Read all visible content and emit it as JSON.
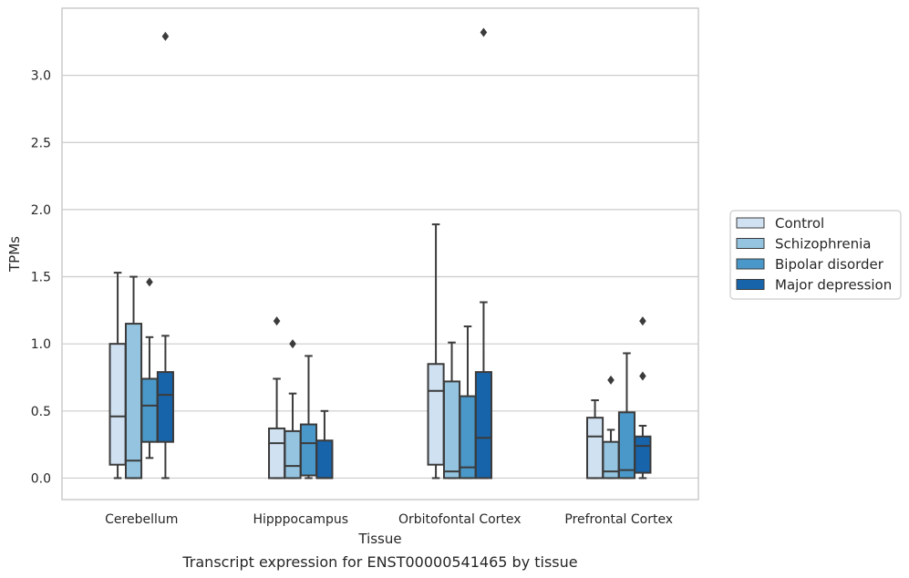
{
  "caption": "Transcript expression for ENST00000541465 by tissue",
  "chart_data": {
    "type": "box",
    "title": "",
    "xlabel": "Tissue",
    "ylabel": "TPMs",
    "ylim": [
      -0.16,
      3.5
    ],
    "yticks": [
      0.0,
      0.5,
      1.0,
      1.5,
      2.0,
      2.5,
      3.0
    ],
    "ytick_labels": [
      "0.0",
      "0.5",
      "1.0",
      "1.5",
      "2.0",
      "2.5",
      "3.0"
    ],
    "grid": "horizontal",
    "legend_position": "right",
    "categories": [
      "Cerebellum",
      "Hipppocampus",
      "Orbitofontal Cortex",
      "Prefrontal Cortex"
    ],
    "series": [
      {
        "name": "Control",
        "color": "#d0e1f2",
        "boxes": [
          {
            "whislo": 0.0,
            "q1": 0.1,
            "med": 0.46,
            "q3": 1.0,
            "whishi": 1.53,
            "fliers": []
          },
          {
            "whislo": 0.0,
            "q1": 0.0,
            "med": 0.26,
            "q3": 0.37,
            "whishi": 0.74,
            "fliers": [
              1.17
            ]
          },
          {
            "whislo": 0.0,
            "q1": 0.1,
            "med": 0.65,
            "q3": 0.85,
            "whishi": 1.89,
            "fliers": []
          },
          {
            "whislo": 0.0,
            "q1": 0.0,
            "med": 0.31,
            "q3": 0.45,
            "whishi": 0.58,
            "fliers": []
          }
        ]
      },
      {
        "name": "Schizophrenia",
        "color": "#94c4df",
        "boxes": [
          {
            "whislo": 0.0,
            "q1": 0.0,
            "med": 0.13,
            "q3": 1.15,
            "whishi": 1.5,
            "fliers": []
          },
          {
            "whislo": 0.0,
            "q1": 0.0,
            "med": 0.09,
            "q3": 0.35,
            "whishi": 0.63,
            "fliers": [
              1.0
            ]
          },
          {
            "whislo": 0.0,
            "q1": 0.0,
            "med": 0.05,
            "q3": 0.72,
            "whishi": 1.01,
            "fliers": []
          },
          {
            "whislo": 0.0,
            "q1": 0.0,
            "med": 0.05,
            "q3": 0.27,
            "whishi": 0.36,
            "fliers": [
              0.73
            ]
          }
        ]
      },
      {
        "name": "Bipolar disorder",
        "color": "#4a98c9",
        "boxes": [
          {
            "whislo": 0.15,
            "q1": 0.27,
            "med": 0.54,
            "q3": 0.74,
            "whishi": 1.05,
            "fliers": [
              1.46
            ]
          },
          {
            "whislo": 0.0,
            "q1": 0.02,
            "med": 0.26,
            "q3": 0.4,
            "whishi": 0.91,
            "fliers": []
          },
          {
            "whislo": 0.0,
            "q1": 0.0,
            "med": 0.08,
            "q3": 0.61,
            "whishi": 1.13,
            "fliers": []
          },
          {
            "whislo": 0.0,
            "q1": 0.0,
            "med": 0.06,
            "q3": 0.49,
            "whishi": 0.93,
            "fliers": []
          }
        ]
      },
      {
        "name": "Major depression",
        "color": "#1764ab",
        "boxes": [
          {
            "whislo": 0.0,
            "q1": 0.27,
            "med": 0.62,
            "q3": 0.79,
            "whishi": 1.06,
            "fliers": [
              3.29
            ]
          },
          {
            "whislo": 0.0,
            "q1": 0.0,
            "med": 0.0,
            "q3": 0.28,
            "whishi": 0.5,
            "fliers": []
          },
          {
            "whislo": 0.0,
            "q1": 0.0,
            "med": 0.3,
            "q3": 0.79,
            "whishi": 1.31,
            "fliers": [
              3.32
            ]
          },
          {
            "whislo": 0.0,
            "q1": 0.04,
            "med": 0.24,
            "q3": 0.31,
            "whishi": 0.39,
            "fliers": [
              0.76,
              1.17
            ]
          }
        ]
      }
    ]
  }
}
